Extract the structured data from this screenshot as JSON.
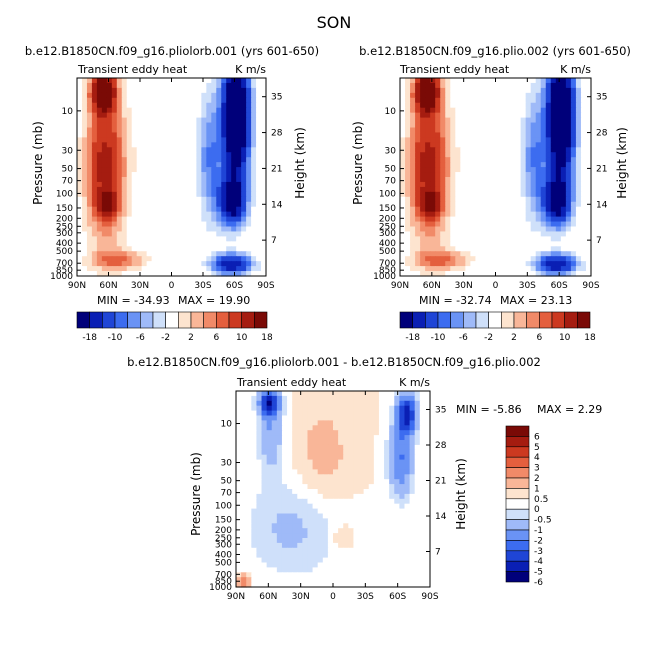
{
  "figure": {
    "title": "SON"
  },
  "chart_data": [
    {
      "type": "heatmap",
      "title": "b.e12.B1850CN.f09_g16.pliolorb.001 (yrs 601-650)",
      "left_label": "Transient eddy heat",
      "right_label": "K m/s",
      "ylabel": "Pressure (mb)",
      "ylabel_right": "Height (km)",
      "xticks": [
        "90N",
        "60N",
        "30N",
        "0",
        "30S",
        "60S",
        "90S"
      ],
      "yticks": [
        "10",
        "30",
        "50",
        "70",
        "100",
        "150",
        "200",
        "250",
        "300",
        "400",
        "500",
        "700",
        "850",
        "1000"
      ],
      "yticks_right": [
        "35",
        "28",
        "21",
        "14",
        "7"
      ],
      "min_label": "MIN = -34.93",
      "max_label": "MAX = 19.90",
      "min": -34.93,
      "max": 19.9,
      "colorbar": {
        "orientation": "horizontal",
        "tick_labels": [
          "-18",
          "-10",
          "-6",
          "-2",
          "2",
          "6",
          "10",
          "18"
        ]
      }
    },
    {
      "type": "heatmap",
      "title": "b.e12.B1850CN.f09_g16.plio.002 (yrs 601-650)",
      "left_label": "Transient eddy heat",
      "right_label": "K m/s",
      "ylabel": "Pressure (mb)",
      "ylabel_right": "Height (km)",
      "xticks": [
        "90N",
        "60N",
        "30N",
        "0",
        "30S",
        "60S",
        "90S"
      ],
      "yticks": [
        "10",
        "30",
        "50",
        "70",
        "100",
        "150",
        "200",
        "250",
        "300",
        "400",
        "500",
        "700",
        "850",
        "1000"
      ],
      "yticks_right": [
        "35",
        "28",
        "21",
        "14",
        "7"
      ],
      "min_label": "MIN = -32.74",
      "max_label": "MAX = 23.13",
      "min": -32.74,
      "max": 23.13,
      "colorbar": {
        "orientation": "horizontal",
        "tick_labels": [
          "-18",
          "-10",
          "-6",
          "-2",
          "2",
          "6",
          "10",
          "18"
        ]
      }
    },
    {
      "type": "heatmap",
      "title": "b.e12.B1850CN.f09_g16.pliolorb.001 - b.e12.B1850CN.f09_g16.plio.002",
      "left_label": "Transient eddy heat",
      "right_label": "K m/s",
      "ylabel": "Pressure (mb)",
      "ylabel_right": "Height (km)",
      "xticks": [
        "90N",
        "60N",
        "30N",
        "0",
        "30S",
        "60S",
        "90S"
      ],
      "yticks": [
        "10",
        "30",
        "50",
        "70",
        "100",
        "150",
        "200",
        "250",
        "300",
        "400",
        "500",
        "700",
        "850",
        "1000"
      ],
      "yticks_right": [
        "35",
        "28",
        "21",
        "14",
        "7"
      ],
      "min_label": "MIN =   -5.86",
      "max_label": "MAX =    2.29",
      "min": -5.86,
      "max": 2.29,
      "colorbar": {
        "orientation": "vertical",
        "tick_labels": [
          "6",
          "5",
          "4",
          "3",
          "2",
          "1",
          "0.5",
          "0",
          "-0.5",
          "-1",
          "-2",
          "-3",
          "-4",
          "-5",
          "-6"
        ]
      }
    }
  ],
  "colors": {
    "full": [
      "#00007a",
      "#0a1fb4",
      "#1f45d6",
      "#3c6cf0",
      "#6a93f5",
      "#9fbaf8",
      "#cfe0fa",
      "#ffffff",
      "#fde4cf",
      "#f9b698",
      "#f18a68",
      "#e45f3e",
      "#cc3920",
      "#a51c10",
      "#7a0a06"
    ],
    "diff": [
      "#00007a",
      "#0a1fb4",
      "#1f45d6",
      "#3c6cf0",
      "#6a93f5",
      "#9fbaf8",
      "#cfe0fa",
      "#ffffff",
      "#fde4cf",
      "#f9b698",
      "#f18a68",
      "#e45f3e",
      "#cc3920",
      "#a51c10",
      "#7a0a06"
    ]
  }
}
